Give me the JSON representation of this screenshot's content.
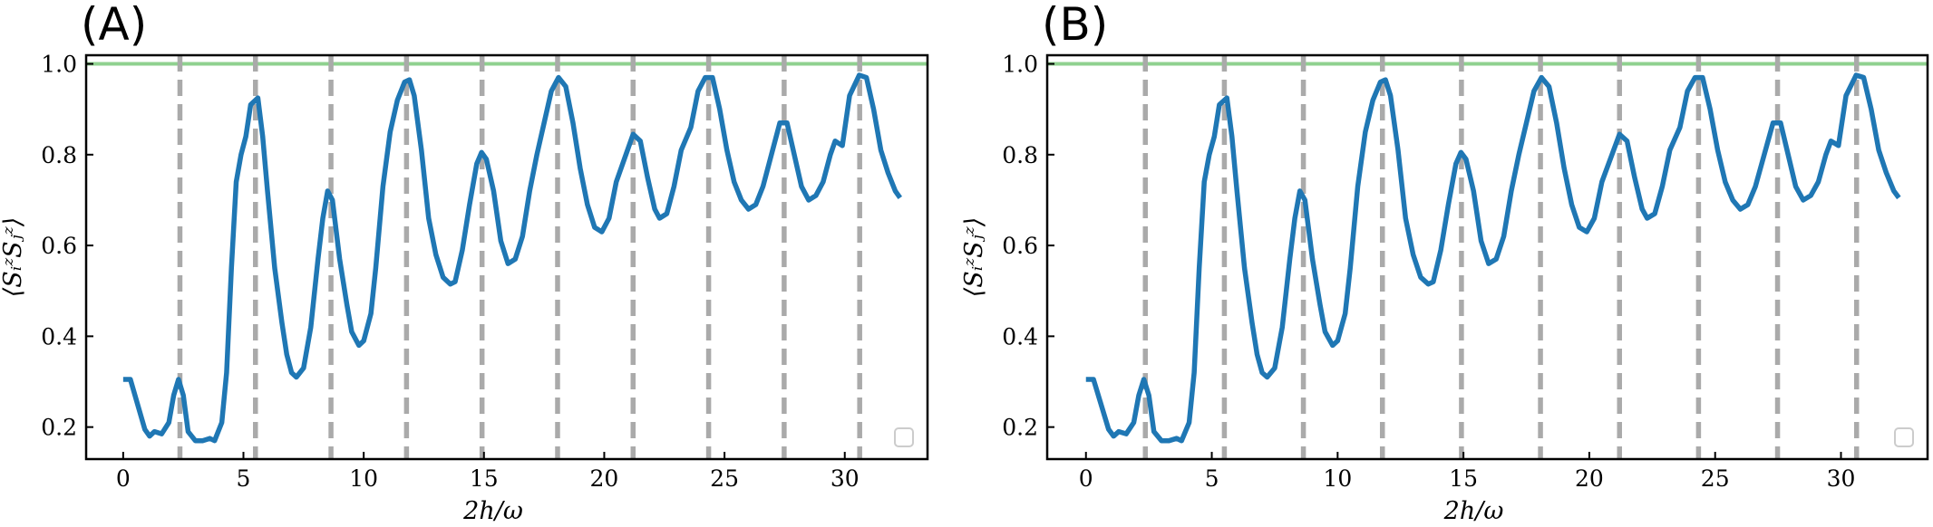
{
  "chart_data": [
    {
      "type": "line",
      "title": "(A)",
      "xlabel": "2h/ω",
      "ylabel": "⟨SᵢᶻSⱼᶻ⟩",
      "x": [
        0,
        0.3,
        0.6,
        0.9,
        1.1,
        1.3,
        1.6,
        1.9,
        2.1,
        2.3,
        2.5,
        2.7,
        3.0,
        3.3,
        3.6,
        3.8,
        4.1,
        4.3,
        4.5,
        4.7,
        4.9,
        5.1,
        5.3,
        5.6,
        5.8,
        6.0,
        6.3,
        6.6,
        6.8,
        7.0,
        7.2,
        7.5,
        7.8,
        8.1,
        8.3,
        8.5,
        8.7,
        9.0,
        9.3,
        9.5,
        9.8,
        10.0,
        10.3,
        10.5,
        10.8,
        11.1,
        11.4,
        11.7,
        11.9,
        12.1,
        12.4,
        12.7,
        13.0,
        13.3,
        13.6,
        13.8,
        14.1,
        14.4,
        14.7,
        14.9,
        15.1,
        15.4,
        15.7,
        16.0,
        16.3,
        16.6,
        16.9,
        17.2,
        17.5,
        17.8,
        18.1,
        18.4,
        18.7,
        19.0,
        19.3,
        19.6,
        19.9,
        20.2,
        20.5,
        20.9,
        21.2,
        21.5,
        21.8,
        22.1,
        22.3,
        22.6,
        22.9,
        23.2,
        23.6,
        23.9,
        24.2,
        24.5,
        24.8,
        25.1,
        25.4,
        25.7,
        26.0,
        26.3,
        26.6,
        26.9,
        27.3,
        27.6,
        27.9,
        28.2,
        28.5,
        28.8,
        29.1,
        29.4,
        29.6,
        29.9,
        30.2,
        30.6,
        30.9,
        31.2,
        31.5,
        31.8,
        32.1,
        32.3
      ],
      "values": [
        0.305,
        0.305,
        0.25,
        0.195,
        0.18,
        0.19,
        0.185,
        0.21,
        0.27,
        0.305,
        0.27,
        0.19,
        0.17,
        0.17,
        0.175,
        0.17,
        0.21,
        0.32,
        0.55,
        0.74,
        0.8,
        0.84,
        0.91,
        0.925,
        0.84,
        0.72,
        0.55,
        0.43,
        0.36,
        0.32,
        0.31,
        0.33,
        0.42,
        0.57,
        0.66,
        0.72,
        0.7,
        0.57,
        0.47,
        0.41,
        0.38,
        0.39,
        0.45,
        0.55,
        0.73,
        0.85,
        0.92,
        0.96,
        0.965,
        0.93,
        0.81,
        0.66,
        0.58,
        0.53,
        0.515,
        0.52,
        0.59,
        0.69,
        0.78,
        0.805,
        0.79,
        0.72,
        0.61,
        0.56,
        0.57,
        0.62,
        0.72,
        0.8,
        0.87,
        0.94,
        0.97,
        0.95,
        0.87,
        0.77,
        0.69,
        0.64,
        0.63,
        0.66,
        0.74,
        0.8,
        0.845,
        0.83,
        0.75,
        0.68,
        0.66,
        0.67,
        0.73,
        0.81,
        0.86,
        0.94,
        0.97,
        0.97,
        0.9,
        0.81,
        0.74,
        0.7,
        0.68,
        0.69,
        0.73,
        0.79,
        0.87,
        0.87,
        0.8,
        0.73,
        0.7,
        0.71,
        0.74,
        0.8,
        0.83,
        0.82,
        0.93,
        0.975,
        0.97,
        0.9,
        0.81,
        0.76,
        0.72,
        0.705
      ],
      "color": "#1f77b4",
      "vlines": [
        2.36,
        5.5,
        8.64,
        11.78,
        14.92,
        18.06,
        21.2,
        24.34,
        27.48,
        30.62
      ],
      "vline_color": "#aaaaaa",
      "hline": 1.0,
      "hline_color": "#8fd18f",
      "xlim": [
        -1.54,
        33.44
      ],
      "ylim": [
        0.1295,
        1.019
      ],
      "xticks": [
        0,
        5,
        10,
        15,
        20,
        25,
        30
      ],
      "yticks": [
        0.2,
        0.4,
        0.6,
        0.8,
        {
          "value": 1,
          "label": "1.0"
        }
      ]
    },
    {
      "type": "line",
      "title": "(B)",
      "xlabel": "2h/ω",
      "ylabel": "⟨SᵢᶻSⱼᶻ⟩",
      "x": [
        0,
        0.3,
        0.6,
        0.9,
        1.1,
        1.3,
        1.6,
        1.9,
        2.1,
        2.3,
        2.5,
        2.7,
        3.0,
        3.3,
        3.6,
        3.8,
        4.1,
        4.3,
        4.5,
        4.7,
        4.9,
        5.1,
        5.3,
        5.6,
        5.8,
        6.0,
        6.3,
        6.6,
        6.8,
        7.0,
        7.2,
        7.5,
        7.8,
        8.1,
        8.3,
        8.5,
        8.7,
        9.0,
        9.3,
        9.5,
        9.8,
        10.0,
        10.3,
        10.5,
        10.8,
        11.1,
        11.4,
        11.7,
        11.9,
        12.1,
        12.4,
        12.7,
        13.0,
        13.3,
        13.6,
        13.8,
        14.1,
        14.4,
        14.7,
        14.9,
        15.1,
        15.4,
        15.7,
        16.0,
        16.3,
        16.6,
        16.9,
        17.2,
        17.5,
        17.8,
        18.1,
        18.4,
        18.7,
        19.0,
        19.3,
        19.6,
        19.9,
        20.2,
        20.5,
        20.9,
        21.2,
        21.5,
        21.8,
        22.1,
        22.3,
        22.6,
        22.9,
        23.2,
        23.6,
        23.9,
        24.2,
        24.5,
        24.8,
        25.1,
        25.4,
        25.7,
        26.0,
        26.3,
        26.6,
        26.9,
        27.3,
        27.6,
        27.9,
        28.2,
        28.5,
        28.8,
        29.1,
        29.4,
        29.6,
        29.9,
        30.2,
        30.6,
        30.9,
        31.2,
        31.5,
        31.8,
        32.1,
        32.3
      ],
      "values": [
        0.305,
        0.305,
        0.25,
        0.195,
        0.18,
        0.19,
        0.185,
        0.21,
        0.27,
        0.305,
        0.27,
        0.19,
        0.17,
        0.17,
        0.175,
        0.17,
        0.21,
        0.32,
        0.55,
        0.74,
        0.8,
        0.84,
        0.91,
        0.925,
        0.84,
        0.72,
        0.55,
        0.43,
        0.36,
        0.32,
        0.31,
        0.33,
        0.42,
        0.57,
        0.66,
        0.72,
        0.7,
        0.57,
        0.47,
        0.41,
        0.38,
        0.39,
        0.45,
        0.55,
        0.73,
        0.85,
        0.92,
        0.96,
        0.965,
        0.93,
        0.81,
        0.66,
        0.58,
        0.53,
        0.515,
        0.52,
        0.59,
        0.69,
        0.78,
        0.805,
        0.79,
        0.72,
        0.61,
        0.56,
        0.57,
        0.62,
        0.72,
        0.8,
        0.87,
        0.94,
        0.97,
        0.95,
        0.87,
        0.77,
        0.69,
        0.64,
        0.63,
        0.66,
        0.74,
        0.8,
        0.845,
        0.83,
        0.75,
        0.68,
        0.66,
        0.67,
        0.73,
        0.81,
        0.86,
        0.94,
        0.97,
        0.97,
        0.9,
        0.81,
        0.74,
        0.7,
        0.68,
        0.69,
        0.73,
        0.79,
        0.87,
        0.87,
        0.8,
        0.73,
        0.7,
        0.71,
        0.74,
        0.8,
        0.83,
        0.82,
        0.93,
        0.975,
        0.97,
        0.9,
        0.81,
        0.76,
        0.72,
        0.705
      ],
      "color": "#1f77b4",
      "vlines": [
        2.36,
        5.5,
        8.64,
        11.78,
        14.92,
        18.06,
        21.2,
        24.34,
        27.48,
        30.62
      ],
      "vline_color": "#aaaaaa",
      "hline": 1.0,
      "hline_color": "#8fd18f",
      "xlim": [
        -1.54,
        33.44
      ],
      "ylim": [
        0.1295,
        1.019
      ],
      "xticks": [
        0,
        5,
        10,
        15,
        20,
        25,
        30
      ],
      "yticks": [
        0.2,
        0.4,
        0.6,
        0.8,
        {
          "value": 1,
          "label": "1.0"
        }
      ]
    }
  ]
}
